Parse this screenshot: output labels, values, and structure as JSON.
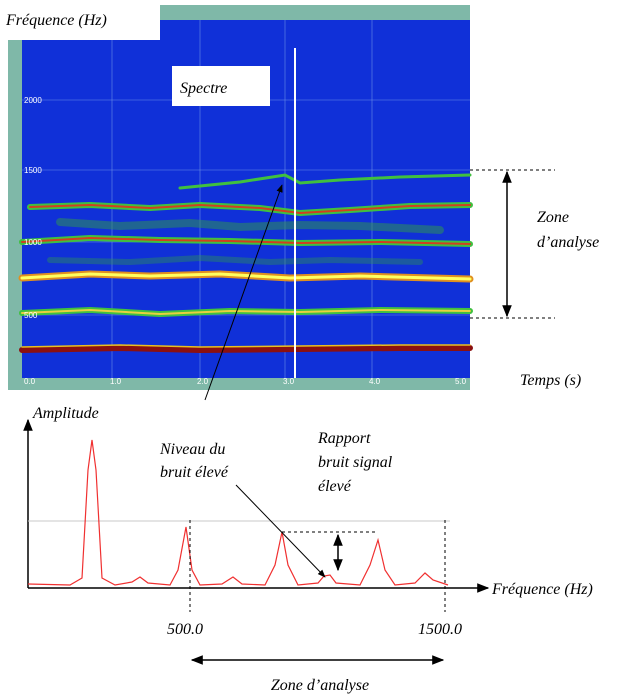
{
  "spectrogram": {
    "y_axis_label": "Fréquence (Hz)",
    "yticks": [
      "2000",
      "1500",
      "1000",
      "500"
    ],
    "xticks": [
      "0.0",
      "1.0",
      "2.0",
      "3.0",
      "4.0",
      "5.0"
    ],
    "x_axis_label": "Temps (s)",
    "marker_label": "Spectre",
    "zone_label": [
      "Zone",
      "d’analyse"
    ]
  },
  "spectrum": {
    "y_axis_label": "Amplitude",
    "x_axis_label": "Fréquence (Hz)",
    "noise_label": [
      "Niveau du",
      "bruit élevé"
    ],
    "ratio_label": [
      "Rapport",
      "bruit signal",
      "élevé"
    ],
    "xticks": [
      "500.0",
      "1500.0"
    ],
    "zone_label": "Zone d’analyse"
  }
}
